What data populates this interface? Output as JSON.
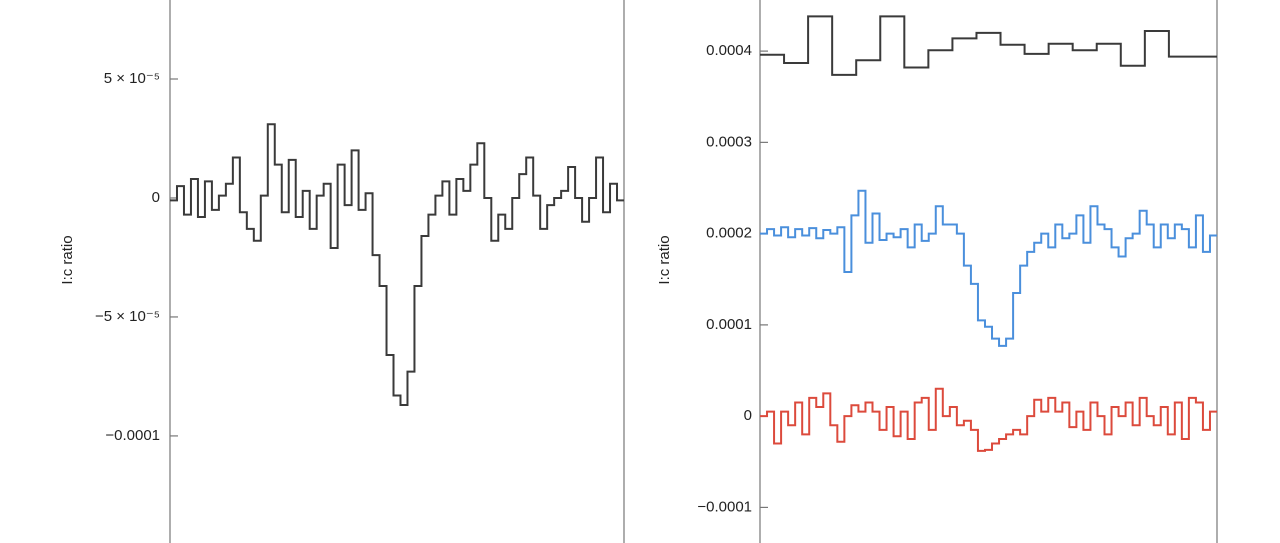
{
  "chart_data": [
    {
      "type": "step",
      "y_label": "I:c ratio",
      "ylim": [
        -0.000145,
        8.32e-05
      ],
      "yticks": [
        {
          "value": 5e-05,
          "label": "5 × 10⁻⁵"
        },
        0,
        {
          "value": -5e-05,
          "label": "−5 × 10⁻⁵"
        },
        {
          "value": -0.0001,
          "label": "−0.0001"
        }
      ],
      "series": [
        {
          "color": "#3a3a3a",
          "values": [
            -1e-06,
            5e-06,
            -7e-06,
            8e-06,
            -8e-06,
            7e-06,
            -5e-06,
            1e-06,
            6e-06,
            1.7e-05,
            -6e-06,
            -1.3e-05,
            -1.8e-05,
            1e-06,
            3.1e-05,
            1.4e-05,
            -6e-06,
            1.6e-05,
            -8e-06,
            3e-06,
            -1.3e-05,
            1e-06,
            6e-06,
            -2.1e-05,
            1.4e-05,
            -3e-06,
            2e-05,
            -5e-06,
            2e-06,
            -2.4e-05,
            -3.7e-05,
            -6.6e-05,
            -8.3e-05,
            -8.7e-05,
            -7.3e-05,
            -3.7e-05,
            -1.6e-05,
            -7e-06,
            1e-06,
            7e-06,
            -7e-06,
            8e-06,
            3e-06,
            1.4e-05,
            2.3e-05,
            0,
            -1.8e-05,
            -7e-06,
            -1.3e-05,
            0,
            1e-05,
            1.7e-05,
            1e-06,
            -1.3e-05,
            -3e-06,
            0,
            3e-06,
            1.3e-05,
            0,
            -1e-05,
            0,
            1.7e-05,
            -6e-06,
            6e-06,
            -1e-06
          ]
        }
      ]
    },
    {
      "type": "step",
      "y_label": "I:c ratio",
      "ylim": [
        -0.000139,
        0.000456
      ],
      "yticks": [
        0.0004,
        0.0003,
        0.0002,
        0.0001,
        0,
        {
          "value": -0.0001,
          "label": "−0.0001"
        }
      ],
      "series": [
        {
          "color": "#3a3a3a",
          "values": [
            0.000396,
            0.000387,
            0.000438,
            0.000374,
            0.00039,
            0.000438,
            0.000382,
            0.000401,
            0.000414,
            0.00042,
            0.000407,
            0.000397,
            0.000408,
            0.000401,
            0.000408,
            0.000384,
            0.000422,
            0.000394,
            0.000394
          ]
        },
        {
          "color": "#4a8fdc",
          "values": [
            0.0002,
            0.000205,
            0.000198,
            0.000207,
            0.000196,
            0.000205,
            0.000198,
            0.000206,
            0.000195,
            0.000204,
            0.0002,
            0.000207,
            0.000158,
            0.00022,
            0.000247,
            0.00019,
            0.000222,
            0.000193,
            0.0002,
            0.000196,
            0.000205,
            0.000185,
            0.00021,
            0.000192,
            0.0002,
            0.00023,
            0.00021,
            0.00021,
            0.0002,
            0.000165,
            0.000145,
            0.000105,
            9.8e-05,
            8.5e-05,
            7.7e-05,
            8.5e-05,
            0.000135,
            0.000165,
            0.00018,
            0.00019,
            0.0002,
            0.000185,
            0.00021,
            0.000195,
            0.0002,
            0.00022,
            0.00019,
            0.00023,
            0.00021,
            0.000205,
            0.000185,
            0.000175,
            0.000195,
            0.0002,
            0.000225,
            0.00021,
            0.000185,
            0.00021,
            0.000195,
            0.00021,
            0.000205,
            0.000185,
            0.00022,
            0.00018,
            0.000198
          ]
        },
        {
          "color": "#dc4a3c",
          "values": [
            0,
            5e-06,
            -3e-05,
            5e-06,
            -1e-05,
            1.5e-05,
            -2e-05,
            2e-05,
            1e-05,
            2.5e-05,
            -1e-05,
            -2.8e-05,
            0,
            1.2e-05,
            5e-06,
            1.5e-05,
            5e-06,
            -1.5e-05,
            1e-05,
            -2.2e-05,
            5e-06,
            -2.5e-05,
            1.5e-05,
            2e-05,
            -1.5e-05,
            3e-05,
            0,
            1e-05,
            -1e-05,
            -5e-06,
            -1.5e-05,
            -3.8e-05,
            -3.7e-05,
            -3e-05,
            -2.5e-05,
            -2e-05,
            -1.5e-05,
            -2e-05,
            0,
            1.8e-05,
            5e-06,
            2e-05,
            5e-06,
            1.5e-05,
            -1.2e-05,
            5e-06,
            -1.5e-05,
            1.5e-05,
            0,
            -2e-05,
            1e-05,
            0,
            1.5e-05,
            -1e-05,
            2e-05,
            0,
            -1e-05,
            1e-05,
            -2e-05,
            1.5e-05,
            -2.5e-05,
            2e-05,
            1.5e-05,
            -1.5e-05,
            5e-06
          ]
        }
      ]
    }
  ]
}
